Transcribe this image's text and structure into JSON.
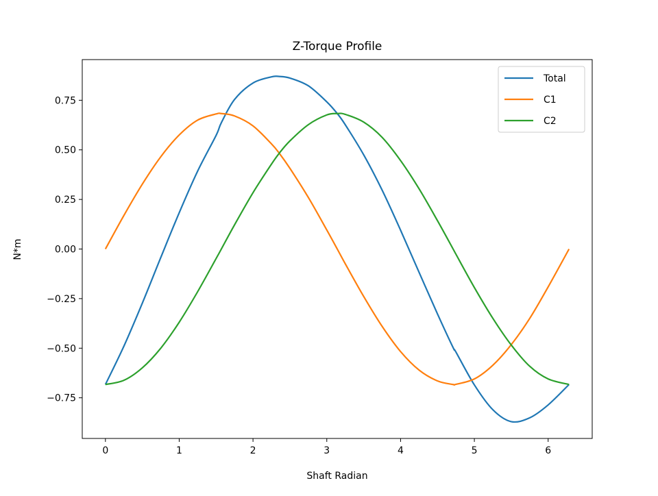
{
  "chart_data": {
    "type": "line",
    "title": "Z-Torque Profile",
    "xlabel": "Shaft Radian",
    "ylabel": "N*m",
    "xlim": [
      -0.314,
      6.597
    ],
    "ylim": [
      -0.955,
      0.955
    ],
    "xticks": [
      {
        "value": 0,
        "label": "0"
      },
      {
        "value": 1,
        "label": "1"
      },
      {
        "value": 2,
        "label": "2"
      },
      {
        "value": 3,
        "label": "3"
      },
      {
        "value": 4,
        "label": "4"
      },
      {
        "value": 5,
        "label": "5"
      },
      {
        "value": 6,
        "label": "6"
      }
    ],
    "yticks": [
      {
        "value": -0.75,
        "label": "−0.75"
      },
      {
        "value": -0.5,
        "label": "−0.50"
      },
      {
        "value": -0.25,
        "label": "−0.25"
      },
      {
        "value": 0,
        "label": "0.00"
      },
      {
        "value": 0.25,
        "label": "0.25"
      },
      {
        "value": 0.5,
        "label": "0.50"
      },
      {
        "value": 0.75,
        "label": "0.75"
      }
    ],
    "grid": false,
    "legend_position": "top-right",
    "x": [
      0,
      0.25,
      0.5,
      0.75,
      1.0,
      1.25,
      1.5,
      1.571,
      1.75,
      2.0,
      2.25,
      2.356,
      2.5,
      2.75,
      3.0,
      3.142,
      3.25,
      3.5,
      3.75,
      4.0,
      4.25,
      4.5,
      4.712,
      4.75,
      5.0,
      5.25,
      5.498,
      5.75,
      6.0,
      6.283
    ],
    "series": [
      {
        "name": "Total",
        "color": "#1f77b4",
        "values": [
          -0.683,
          -0.49,
          -0.273,
          -0.043,
          0.183,
          0.393,
          0.573,
          0.637,
          0.754,
          0.837,
          0.868,
          0.87,
          0.862,
          0.823,
          0.742,
          0.683,
          0.627,
          0.475,
          0.297,
          0.095,
          -0.117,
          -0.327,
          -0.497,
          -0.519,
          -0.685,
          -0.81,
          -0.87,
          -0.851,
          -0.786,
          -0.683
        ]
      },
      {
        "name": "C1",
        "color": "#ff7f0e",
        "values": [
          0,
          0.169,
          0.327,
          0.465,
          0.575,
          0.65,
          0.681,
          0.683,
          0.671,
          0.621,
          0.53,
          0.483,
          0.407,
          0.26,
          0.096,
          0,
          -0.074,
          -0.239,
          -0.39,
          -0.517,
          -0.61,
          -0.665,
          -0.683,
          -0.682,
          -0.655,
          -0.586,
          -0.483,
          -0.35,
          -0.191,
          0
        ]
      },
      {
        "name": "C2",
        "color": "#2ca02c",
        "values": [
          -0.683,
          -0.662,
          -0.599,
          -0.5,
          -0.369,
          -0.215,
          -0.048,
          0,
          0.122,
          0.284,
          0.428,
          0.483,
          0.545,
          0.627,
          0.676,
          0.683,
          0.679,
          0.64,
          0.563,
          0.446,
          0.304,
          0.143,
          0,
          -0.026,
          -0.194,
          -0.349,
          -0.483,
          -0.591,
          -0.655,
          -0.683
        ]
      }
    ]
  }
}
